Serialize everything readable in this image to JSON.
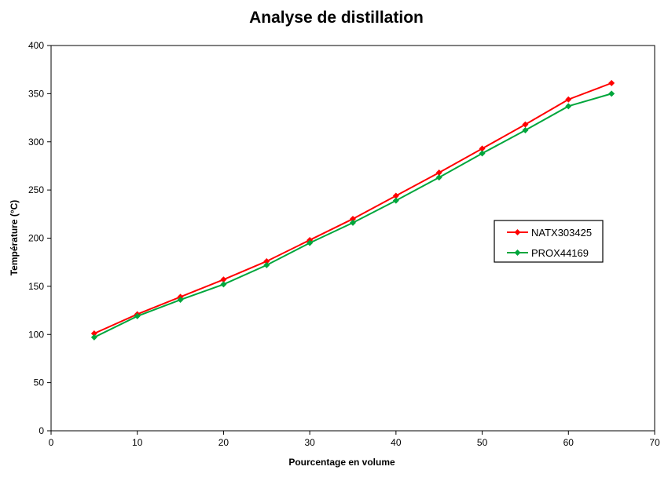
{
  "chart_data": {
    "type": "line",
    "title": "Analyse de distillation",
    "xlabel": "Pourcentage en volume",
    "ylabel": "Température (°C)",
    "xlim": [
      0,
      70
    ],
    "ylim": [
      0,
      400
    ],
    "xticks": [
      0,
      10,
      20,
      30,
      40,
      50,
      60,
      70
    ],
    "yticks": [
      0,
      50,
      100,
      150,
      200,
      250,
      300,
      350,
      400
    ],
    "grid": false,
    "legend_position": "right",
    "x": [
      5,
      10,
      15,
      20,
      25,
      30,
      35,
      40,
      45,
      50,
      55,
      60,
      65
    ],
    "series": [
      {
        "name": "NATX303425",
        "color": "#ff0000",
        "marker": "diamond",
        "values": [
          101,
          121,
          139,
          157,
          176,
          198,
          220,
          244,
          268,
          293,
          318,
          344,
          361
        ]
      },
      {
        "name": "PROX44169",
        "color": "#00a63c",
        "marker": "diamond",
        "values": [
          97,
          119,
          136,
          152,
          172,
          195,
          216,
          239,
          263,
          288,
          312,
          337,
          350
        ]
      }
    ]
  }
}
